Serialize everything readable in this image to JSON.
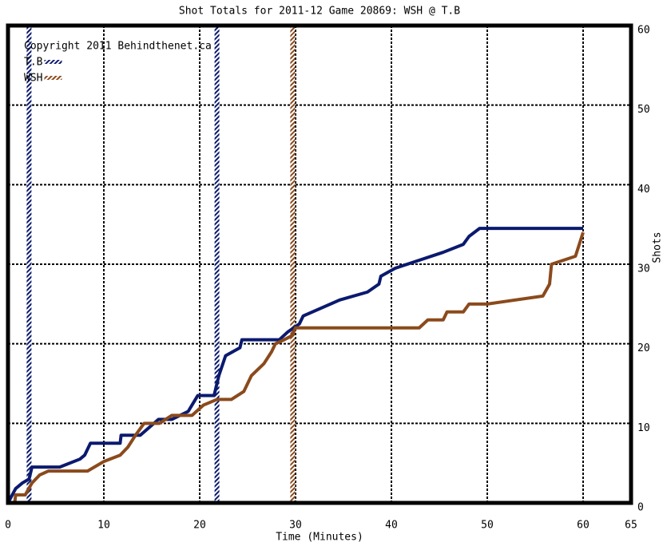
{
  "chart_data": {
    "type": "line",
    "title": "Shot Totals for 2011-12 Game 20869: WSH @ T.B",
    "annotation": "Copyright 2011 Behindthenet.ca",
    "xlabel": "Time (Minutes)",
    "ylabel": "Shots",
    "xlim": [
      0,
      65
    ],
    "ylim": [
      0,
      60
    ],
    "xticks": [
      0,
      10,
      20,
      30,
      40,
      50,
      60,
      65
    ],
    "yticks": [
      0,
      10,
      20,
      30,
      40,
      50,
      60
    ],
    "grid": true,
    "legend": "upper left",
    "series": [
      {
        "name": "T.B",
        "color": "#0b1a6e",
        "goals": [
          2.2,
          21.8
        ],
        "x": [
          0,
          0.8,
          1.5,
          2.2,
          2.5,
          5.4,
          7.5,
          8.0,
          8.6,
          11.7,
          11.8,
          13.8,
          15.7,
          17.1,
          18.8,
          19.8,
          21.5,
          22.0,
          22.7,
          24.2,
          24.4,
          28.3,
          29.2,
          30.4,
          30.8,
          34.6,
          37.5,
          38.7,
          38.9,
          40.4,
          42.9,
          45.4,
          47.5,
          48.1,
          49.2,
          60
        ],
        "values": [
          0,
          1.8,
          2.5,
          3,
          4.5,
          4.5,
          5.5,
          6,
          7.5,
          7.5,
          8.5,
          8.5,
          10.5,
          10.5,
          11.5,
          13.5,
          13.5,
          16,
          18.5,
          19.5,
          20.5,
          20.5,
          21.5,
          22.5,
          23.5,
          25.5,
          26.5,
          27.5,
          28.5,
          29.5,
          30.5,
          31.5,
          32.5,
          33.5,
          34.5,
          34.5
        ]
      },
      {
        "name": "WSH",
        "color": "#8b4a1c",
        "goals": [
          29.7
        ],
        "x": [
          0,
          0.7,
          0.8,
          1.8,
          2.5,
          3.3,
          4.2,
          5.8,
          8.3,
          10,
          11.7,
          12.5,
          13.3,
          14.2,
          15.8,
          17.1,
          19.2,
          20.4,
          21.8,
          23.3,
          24.6,
          25.4,
          26.7,
          27.5,
          27.9,
          28.8,
          29.6,
          30,
          30.8,
          42.9,
          43.8,
          45.4,
          45.8,
          47.5,
          48.1,
          50,
          55.8,
          56.5,
          56.7,
          59.2,
          60
        ],
        "values": [
          0,
          0,
          1,
          1,
          2.5,
          3.5,
          4,
          4,
          4,
          5.2,
          6,
          7,
          8.5,
          10,
          10,
          11,
          11,
          12.3,
          13,
          13,
          14,
          16,
          17.5,
          19,
          20,
          20.5,
          21,
          22,
          22,
          22,
          23,
          23,
          24,
          24,
          25,
          25,
          26,
          27.5,
          30,
          31,
          34
        ]
      }
    ]
  }
}
